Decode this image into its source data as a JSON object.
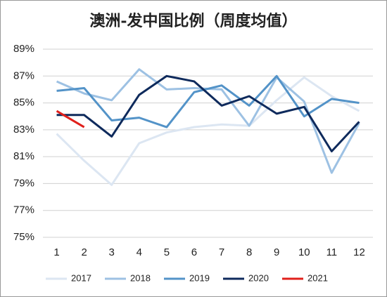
{
  "chart_data": {
    "type": "line",
    "title": "澳洲-发中国比例（周度均值）",
    "categories": [
      "1",
      "2",
      "3",
      "4",
      "5",
      "6",
      "7",
      "8",
      "9",
      "10",
      "11",
      "12"
    ],
    "series": [
      {
        "name": "2017",
        "color": "#dce6f2",
        "values": [
          82.7,
          80.7,
          78.9,
          82.0,
          82.8,
          83.2,
          83.4,
          83.3,
          85.2,
          86.9,
          85.5,
          84.4
        ]
      },
      {
        "name": "2018",
        "color": "#9dc1e3",
        "values": [
          86.6,
          85.7,
          85.2,
          87.5,
          86.0,
          86.1,
          86.0,
          83.3,
          86.9,
          85.1,
          79.8,
          83.5
        ]
      },
      {
        "name": "2019",
        "color": "#5393c8",
        "values": [
          85.9,
          86.1,
          83.7,
          83.9,
          83.2,
          85.8,
          86.3,
          84.8,
          87.0,
          84.0,
          85.3,
          85.0
        ]
      },
      {
        "name": "2020",
        "color": "#0e2a5c",
        "values": [
          84.1,
          84.1,
          82.5,
          85.6,
          87.0,
          86.6,
          84.8,
          85.5,
          84.2,
          84.7,
          81.4,
          83.6
        ]
      },
      {
        "name": "2021",
        "color": "#e0201b",
        "values": [
          84.4,
          83.2,
          null,
          null,
          null,
          null,
          null,
          null,
          null,
          null,
          null,
          null
        ]
      }
    ],
    "ylim": [
      75,
      89
    ],
    "yticks": [
      {
        "value": 75,
        "label": "75%"
      },
      {
        "value": 77,
        "label": "77%"
      },
      {
        "value": 79,
        "label": "79%"
      },
      {
        "value": 81,
        "label": "81%"
      },
      {
        "value": 83,
        "label": "83%"
      },
      {
        "value": 85,
        "label": "85%"
      },
      {
        "value": 87,
        "label": "87%"
      },
      {
        "value": 89,
        "label": "89%"
      }
    ],
    "grid": true,
    "legend": "bottom"
  }
}
